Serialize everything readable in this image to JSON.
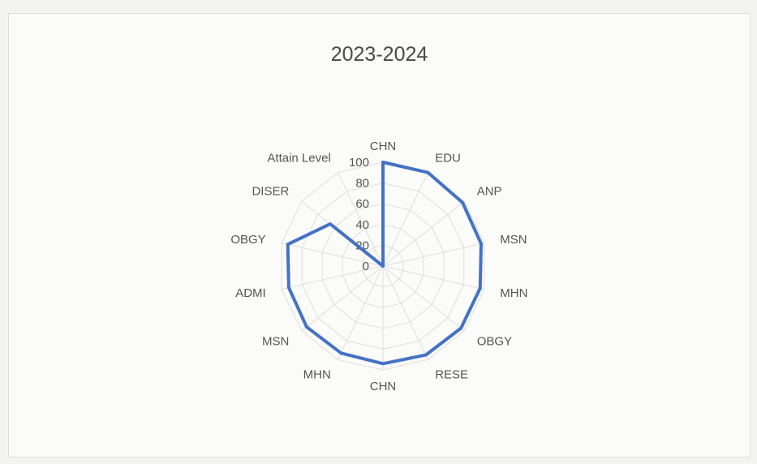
{
  "chart_data": {
    "type": "radar",
    "title": "2023-2024",
    "categories": [
      "CHN",
      "EDU",
      "ANP",
      "MSN",
      "MHN",
      "OBGY",
      "RESE",
      "CHN",
      "MHN",
      "MSN",
      "ADMI",
      "OBGY",
      "DISER",
      "Attain Level"
    ],
    "series": [
      {
        "values": [
          100,
          100,
          98,
          97,
          96,
          96,
          95,
          94,
          93,
          94,
          93,
          94,
          65,
          0
        ]
      }
    ],
    "axis_ticks": [
      0,
      20,
      40,
      60,
      80,
      100
    ],
    "rlim": [
      0,
      100
    ],
    "grid": true,
    "legend": "none",
    "line_color": "#4472c4",
    "grid_color": "#dedede"
  }
}
